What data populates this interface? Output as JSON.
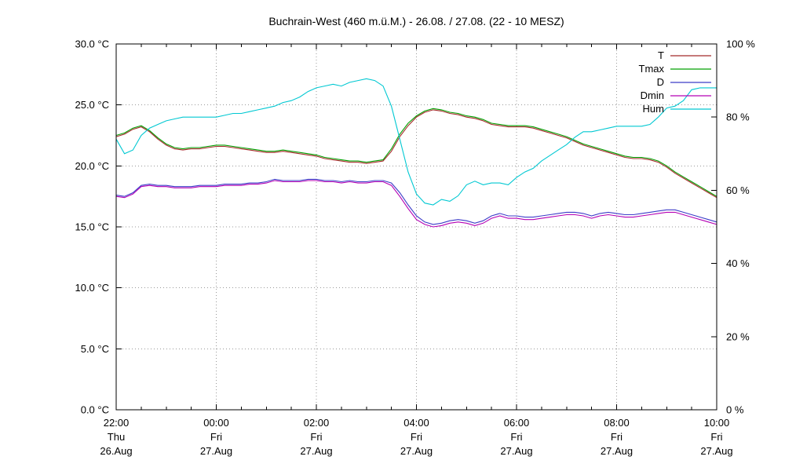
{
  "chart_data": {
    "type": "line",
    "title": "Buchrain-West (460 m.ü.M.) - 26.08. / 27.08. (22 - 10 MESZ)",
    "grid": true,
    "sample_interval_minutes": 10,
    "colors": {
      "background": "#ffffff",
      "border": "#000000",
      "grid": "#999999",
      "text": "#000000"
    },
    "x_axis": {
      "range_hours": [
        0,
        12
      ],
      "minor_tick_interval": 0.5,
      "major_ticks": [
        {
          "pos": 0,
          "time": "22:00",
          "day": "Thu",
          "date": "26.Aug"
        },
        {
          "pos": 2,
          "time": "00:00",
          "day": "Fri",
          "date": "27.Aug"
        },
        {
          "pos": 4,
          "time": "02:00",
          "day": "Fri",
          "date": "27.Aug"
        },
        {
          "pos": 6,
          "time": "04:00",
          "day": "Fri",
          "date": "27.Aug"
        },
        {
          "pos": 8,
          "time": "06:00",
          "day": "Fri",
          "date": "27.Aug"
        },
        {
          "pos": 10,
          "time": "08:00",
          "day": "Fri",
          "date": "27.Aug"
        },
        {
          "pos": 12,
          "time": "10:00",
          "day": "Fri",
          "date": "27.Aug"
        }
      ]
    },
    "y_left": {
      "unit": "°C",
      "range": [
        0,
        30
      ],
      "ticks": [
        {
          "v": 0,
          "label": "0.0 °C"
        },
        {
          "v": 5,
          "label": "5.0 °C"
        },
        {
          "v": 10,
          "label": "10.0 °C"
        },
        {
          "v": 15,
          "label": "15.0 °C"
        },
        {
          "v": 20,
          "label": "20.0 °C"
        },
        {
          "v": 25,
          "label": "25.0 °C"
        },
        {
          "v": 30,
          "label": "30.0 °C"
        }
      ]
    },
    "y_right": {
      "unit": "%",
      "range": [
        0,
        100
      ],
      "ticks": [
        {
          "v": 0,
          "label": "0 %"
        },
        {
          "v": 20,
          "label": "20 %"
        },
        {
          "v": 40,
          "label": "40 %"
        },
        {
          "v": 60,
          "label": "60 %"
        },
        {
          "v": 80,
          "label": "80 %"
        },
        {
          "v": 100,
          "label": "100 %"
        }
      ]
    },
    "legend": {
      "position": "top-right"
    },
    "draw_order": [
      1,
      0,
      3,
      2,
      4
    ],
    "series": [
      {
        "name": "T",
        "axis": "left",
        "color": "#a52a2a",
        "values": [
          22.4,
          22.6,
          23.0,
          23.2,
          22.8,
          22.2,
          21.7,
          21.4,
          21.3,
          21.4,
          21.4,
          21.5,
          21.6,
          21.6,
          21.5,
          21.4,
          21.3,
          21.2,
          21.1,
          21.1,
          21.2,
          21.1,
          21.0,
          20.9,
          20.8,
          20.6,
          20.5,
          20.4,
          20.3,
          20.3,
          20.2,
          20.3,
          20.4,
          21.2,
          22.4,
          23.3,
          24.0,
          24.4,
          24.6,
          24.5,
          24.3,
          24.2,
          24.0,
          23.9,
          23.7,
          23.4,
          23.3,
          23.2,
          23.2,
          23.2,
          23.1,
          22.9,
          22.7,
          22.5,
          22.3,
          22.0,
          21.7,
          21.5,
          21.3,
          21.1,
          20.9,
          20.7,
          20.6,
          20.6,
          20.5,
          20.3,
          19.9,
          19.4,
          19.0,
          18.6,
          18.2,
          17.8,
          17.4
        ]
      },
      {
        "name": "Tmax",
        "axis": "left",
        "color": "#00a000",
        "values": [
          22.5,
          22.7,
          23.1,
          23.3,
          22.9,
          22.3,
          21.8,
          21.5,
          21.4,
          21.5,
          21.5,
          21.6,
          21.7,
          21.7,
          21.6,
          21.5,
          21.4,
          21.3,
          21.2,
          21.2,
          21.3,
          21.2,
          21.1,
          21.0,
          20.9,
          20.7,
          20.6,
          20.5,
          20.4,
          20.4,
          20.3,
          20.4,
          20.5,
          21.4,
          22.6,
          23.5,
          24.1,
          24.5,
          24.7,
          24.6,
          24.4,
          24.3,
          24.1,
          24.0,
          23.8,
          23.5,
          23.4,
          23.3,
          23.3,
          23.3,
          23.2,
          23.0,
          22.8,
          22.6,
          22.4,
          22.1,
          21.8,
          21.6,
          21.4,
          21.2,
          21.0,
          20.8,
          20.7,
          20.7,
          20.6,
          20.4,
          20.0,
          19.5,
          19.1,
          18.7,
          18.3,
          17.9,
          17.5
        ]
      },
      {
        "name": "D",
        "axis": "left",
        "color": "#3c3cc8",
        "values": [
          17.6,
          17.5,
          17.8,
          18.4,
          18.5,
          18.4,
          18.4,
          18.3,
          18.3,
          18.3,
          18.4,
          18.4,
          18.4,
          18.5,
          18.5,
          18.5,
          18.6,
          18.6,
          18.7,
          18.9,
          18.8,
          18.8,
          18.8,
          18.9,
          18.9,
          18.8,
          18.8,
          18.7,
          18.8,
          18.7,
          18.7,
          18.8,
          18.8,
          18.6,
          17.8,
          16.8,
          15.9,
          15.4,
          15.2,
          15.3,
          15.5,
          15.6,
          15.5,
          15.3,
          15.5,
          15.9,
          16.1,
          15.9,
          15.9,
          15.8,
          15.8,
          15.9,
          16.0,
          16.1,
          16.2,
          16.2,
          16.1,
          15.9,
          16.1,
          16.2,
          16.1,
          16.0,
          16.0,
          16.1,
          16.2,
          16.3,
          16.4,
          16.4,
          16.2,
          16.0,
          15.8,
          15.6,
          15.4
        ]
      },
      {
        "name": "Dmin",
        "axis": "left",
        "color": "#b400b4",
        "values": [
          17.5,
          17.4,
          17.7,
          18.3,
          18.4,
          18.3,
          18.3,
          18.2,
          18.2,
          18.2,
          18.3,
          18.3,
          18.3,
          18.4,
          18.4,
          18.4,
          18.5,
          18.5,
          18.6,
          18.8,
          18.7,
          18.7,
          18.7,
          18.8,
          18.8,
          18.7,
          18.7,
          18.6,
          18.7,
          18.6,
          18.6,
          18.7,
          18.7,
          18.4,
          17.5,
          16.5,
          15.6,
          15.2,
          15.0,
          15.1,
          15.3,
          15.4,
          15.3,
          15.1,
          15.3,
          15.7,
          15.9,
          15.7,
          15.7,
          15.6,
          15.6,
          15.7,
          15.8,
          15.9,
          16.0,
          16.0,
          15.9,
          15.7,
          15.9,
          16.0,
          15.9,
          15.8,
          15.8,
          15.9,
          16.0,
          16.1,
          16.2,
          16.2,
          16.0,
          15.8,
          15.6,
          15.4,
          15.2
        ]
      },
      {
        "name": "Hum",
        "axis": "right",
        "color": "#00c8d2",
        "values": [
          74,
          70,
          71,
          75,
          77,
          78,
          79,
          79.5,
          80,
          80,
          80,
          80,
          80,
          80.5,
          81,
          81,
          81.5,
          82,
          82.5,
          83,
          84,
          84.5,
          85.5,
          87,
          88,
          88.5,
          89,
          88.5,
          89.5,
          90,
          90.5,
          90,
          88.5,
          83,
          74,
          65,
          59,
          56.5,
          56,
          57.5,
          57,
          58.5,
          61.5,
          62.5,
          61.5,
          62,
          62,
          61.5,
          63.5,
          65,
          66,
          68,
          69.5,
          71,
          72.5,
          74.5,
          76,
          76,
          76.5,
          77,
          77.5,
          77.5,
          77.5,
          77.5,
          78,
          80,
          82.5,
          83,
          84.5,
          87.5,
          88,
          88,
          88
        ]
      }
    ]
  }
}
